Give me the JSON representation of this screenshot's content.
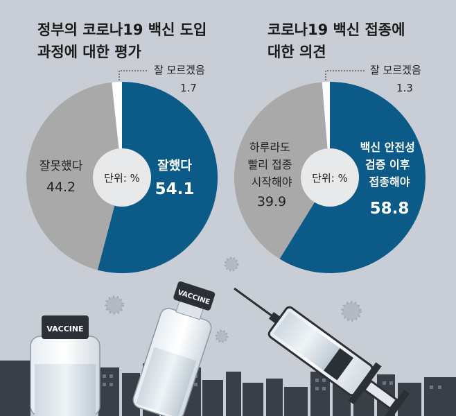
{
  "chart_data": [
    {
      "type": "pie",
      "title": "정부의 코로나19 백신 도입\n과정에 대한 평가",
      "unit_label": "단위: %",
      "slices": [
        {
          "label": "잘했다",
          "value": 54.1,
          "color": "#0b5a87"
        },
        {
          "label": "잘못했다",
          "value": 44.2,
          "color": "#a9a9a9"
        },
        {
          "label": "잘 모르겠음",
          "value": 1.7,
          "color": "#ffffff"
        }
      ]
    },
    {
      "type": "pie",
      "title": "코로나19 백신 접종에\n대한 의견",
      "unit_label": "단위: %",
      "slices": [
        {
          "label": "백신 안전성\n검증 이후\n접종해야",
          "value": 58.8,
          "color": "#0b5a87"
        },
        {
          "label": "하루라도\n빨리 접종\n시작해야",
          "value": 39.9,
          "color": "#a9a9a9"
        },
        {
          "label": "잘 모르겠음",
          "value": 1.3,
          "color": "#ffffff"
        }
      ]
    }
  ],
  "illustration": {
    "vial_label": "VACCINE"
  }
}
